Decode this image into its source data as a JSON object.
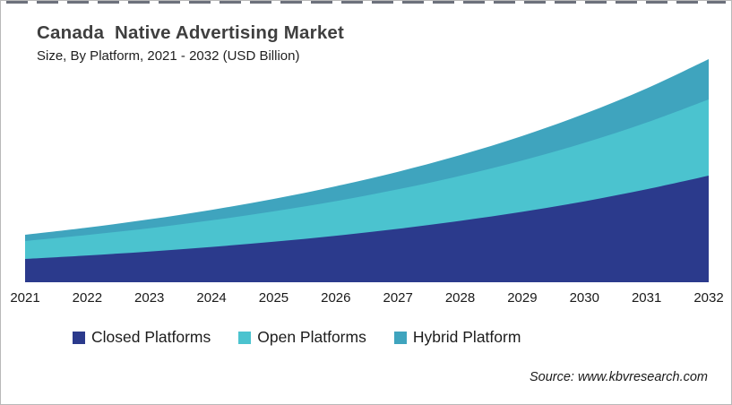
{
  "header": {
    "title": "Canada  Native Advertising Market",
    "subtitle": "Size, By Platform, 2021 - 2032 (USD Billion)"
  },
  "footer": {
    "source": "Source: www.kbvresearch.com"
  },
  "legend": {
    "items": [
      {
        "label": "Closed Platforms",
        "color": "#2b3a8c"
      },
      {
        "label": "Open Platforms",
        "color": "#4bc3cf"
      },
      {
        "label": "Hybrid Platform",
        "color": "#3fa4be"
      }
    ]
  },
  "chart_data": {
    "type": "area",
    "stacked": true,
    "title": "Canada Native Advertising Market",
    "subtitle": "Size, By Platform, 2021 - 2032 (USD Billion)",
    "xlabel": "",
    "ylabel": "",
    "categories": [
      "2021",
      "2022",
      "2023",
      "2024",
      "2025",
      "2026",
      "2027",
      "2028",
      "2029",
      "2030",
      "2031",
      "2032"
    ],
    "series": [
      {
        "name": "Closed Platforms",
        "color": "#2b3a8c",
        "values": [
          26.0,
          29.9,
          34.3,
          39.4,
          45.2,
          51.9,
          59.6,
          68.5,
          78.6,
          90.3,
          103.7,
          119.0
        ]
      },
      {
        "name": "Open Platforms",
        "color": "#4bc3cf",
        "values": [
          20.0,
          22.8,
          26.0,
          29.7,
          33.9,
          38.6,
          44.1,
          50.2,
          57.3,
          65.3,
          74.5,
          85.0
        ]
      },
      {
        "name": "Hybrid Platform",
        "color": "#3fa4be",
        "values": [
          7.0,
          8.3,
          9.9,
          11.7,
          13.9,
          16.6,
          19.6,
          23.2,
          27.4,
          32.4,
          38.1,
          45.0
        ]
      }
    ],
    "ylim": [
      0,
      259
    ],
    "yaxis_visible": false,
    "grid": false,
    "legend_position": "bottom",
    "values_note": "Y axis is unlabeled in the figure; series values are estimated relative magnitudes read from the plot geometry"
  }
}
